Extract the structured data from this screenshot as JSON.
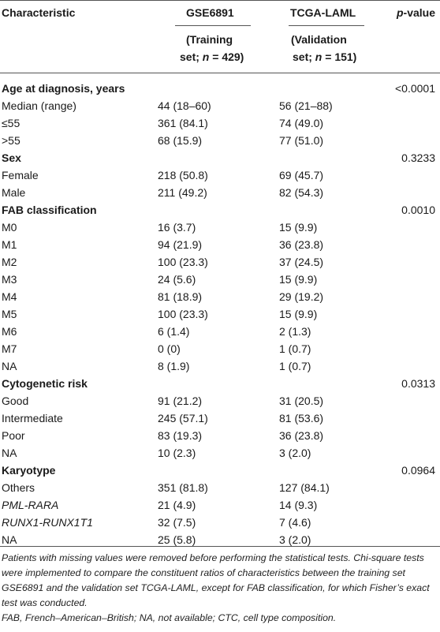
{
  "header": {
    "col_characteristic": "Characteristic",
    "col_gse": "GSE6891",
    "col_gse_sub1": "(Training",
    "col_gse_sub2": "set; n = 429)",
    "col_tcga": "TCGA-LAML",
    "col_tcga_sub1": "(Validation",
    "col_tcga_sub2": "set; n = 151)",
    "col_pvalue": "p-value"
  },
  "rows": [
    {
      "label": "Age at diagnosis, years",
      "gse": "",
      "tcga": "",
      "p": "<0.0001",
      "section": true
    },
    {
      "label": "Median (range)",
      "gse": "44 (18–60)",
      "tcga": "56 (21–88)",
      "p": ""
    },
    {
      "label": "≤55",
      "gse": "361 (84.1)",
      "tcga": "74 (49.0)",
      "p": ""
    },
    {
      "label": ">55",
      "gse": "68 (15.9)",
      "tcga": "77 (51.0)",
      "p": ""
    },
    {
      "label": "Sex",
      "gse": "",
      "tcga": "",
      "p": "0.3233",
      "section": true
    },
    {
      "label": "Female",
      "gse": "218 (50.8)",
      "tcga": "69 (45.7)",
      "p": ""
    },
    {
      "label": "Male",
      "gse": "211 (49.2)",
      "tcga": "82 (54.3)",
      "p": ""
    },
    {
      "label": "FAB classification",
      "gse": "",
      "tcga": "",
      "p": "0.0010",
      "section": true
    },
    {
      "label": "M0",
      "gse": "16 (3.7)",
      "tcga": "15 (9.9)",
      "p": ""
    },
    {
      "label": "M1",
      "gse": "94 (21.9)",
      "tcga": "36 (23.8)",
      "p": ""
    },
    {
      "label": "M2",
      "gse": "100 (23.3)",
      "tcga": "37 (24.5)",
      "p": ""
    },
    {
      "label": "M3",
      "gse": "24 (5.6)",
      "tcga": "15 (9.9)",
      "p": ""
    },
    {
      "label": "M4",
      "gse": "81 (18.9)",
      "tcga": "29 (19.2)",
      "p": ""
    },
    {
      "label": "M5",
      "gse": "100 (23.3)",
      "tcga": "15 (9.9)",
      "p": ""
    },
    {
      "label": "M6",
      "gse": "6 (1.4)",
      "tcga": "2 (1.3)",
      "p": ""
    },
    {
      "label": "M7",
      "gse": "0 (0)",
      "tcga": "1 (0.7)",
      "p": ""
    },
    {
      "label": "NA",
      "gse": "8 (1.9)",
      "tcga": "1 (0.7)",
      "p": ""
    },
    {
      "label": "Cytogenetic risk",
      "gse": "",
      "tcga": "",
      "p": "0.0313",
      "section": true
    },
    {
      "label": "Good",
      "gse": "91 (21.2)",
      "tcga": "31 (20.5)",
      "p": ""
    },
    {
      "label": "Intermediate",
      "gse": "245 (57.1)",
      "tcga": "81 (53.6)",
      "p": ""
    },
    {
      "label": "Poor",
      "gse": "83 (19.3)",
      "tcga": "36 (23.8)",
      "p": ""
    },
    {
      "label": "NA",
      "gse": "10 (2.3)",
      "tcga": "3 (2.0)",
      "p": ""
    },
    {
      "label": "Karyotype",
      "gse": "",
      "tcga": "",
      "p": "0.0964",
      "section": true
    },
    {
      "label": "Others",
      "gse": "351 (81.8)",
      "tcga": "127 (84.1)",
      "p": ""
    },
    {
      "label": "PML-RARA",
      "gse": "21 (4.9)",
      "tcga": "14 (9.3)",
      "p": "",
      "italic": true
    },
    {
      "label": "RUNX1-RUNX1T1",
      "gse": "32 (7.5)",
      "tcga": "7 (4.6)",
      "p": "",
      "italic": true
    },
    {
      "label": "NA",
      "gse": "25 (5.8)",
      "tcga": "3 (2.0)",
      "p": ""
    }
  ],
  "footnote": {
    "p1": "Patients with missing values were removed before performing the statistical tests. Chi-square tests were implemented to compare the constituent ratios of characteristics between the training set GSE6891 and the validation set TCGA-LAML, except for FAB classification, for which Fisher’s exact test was conducted.",
    "p2": "FAB, French–American–British; NA, not available; CTC, cell type composition."
  }
}
